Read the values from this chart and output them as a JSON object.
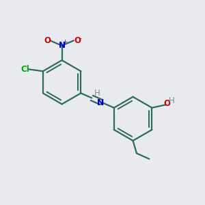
{
  "background_color": "#e8eaf0",
  "bond_color": "#2d6b5a",
  "atom_colors": {
    "N_nitro": "#0000cc",
    "O": "#cc0000",
    "Cl": "#00aa00",
    "N_imine": "#0000cc",
    "H": "#7a9090",
    "C": "#2d6b5a"
  },
  "figsize": [
    3.0,
    3.0
  ],
  "dpi": 100,
  "r1cx": 0.3,
  "r1cy": 0.6,
  "r2cx": 0.65,
  "r2cy": 0.42,
  "ring_r": 0.108
}
